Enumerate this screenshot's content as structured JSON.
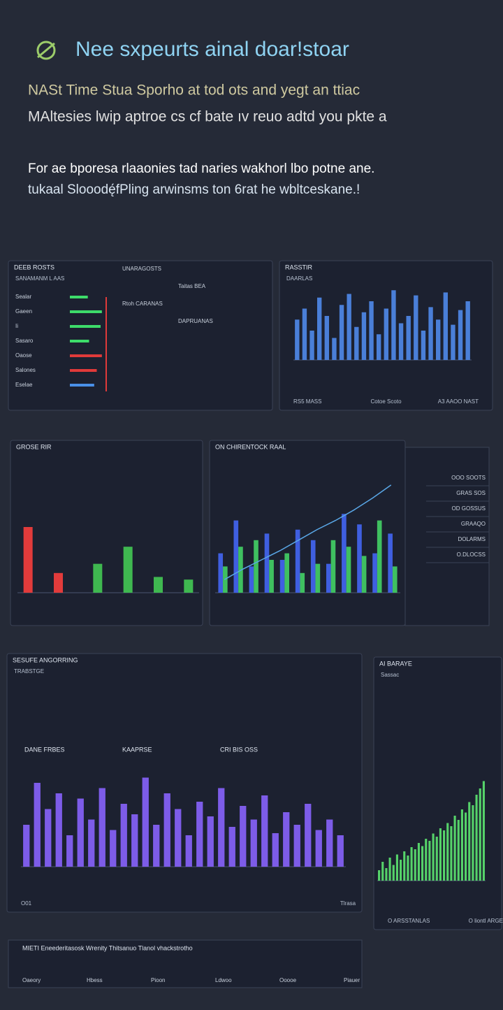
{
  "header": {
    "title": "Nee sxpeurts ainal doar!stoar",
    "subtitle": [
      "NASt Time Stua Sporho at tod ots and yegt an ttiac",
      "MAltesies lwip aptroe cs cf bate ıv reuo adtd you pkte a"
    ],
    "intro": [
      "For ae bporesa rlaaonies tad naries wakhorl lbo potne ane.",
      "tukaal Slooodę́fPling arwinsms ton 6rat he wbltceskane.!"
    ]
  },
  "chart_data": [
    {
      "type": "hbar",
      "title": "DEEB ROSTS",
      "subtitle": "SANAMANM L AAS",
      "xlim": [
        0,
        60
      ],
      "categories": [
        "Sealar",
        "Gaeen",
        "Ii",
        "Sasaro",
        "Oaose",
        "Salones",
        "Eselae"
      ],
      "values": [
        28,
        50,
        48,
        30,
        50,
        42,
        38
      ],
      "colors": [
        "#3ddc6a",
        "#3ddc6a",
        "#3ddc6a",
        "#3ddc6a",
        "#e03a3a",
        "#e03a3a",
        "#4a90e8"
      ],
      "notes": [
        "UNARAGOSTS",
        "Taitas BEA",
        "Rtoh CARANAS",
        "DAPRUANAS"
      ]
    },
    {
      "type": "bar",
      "title": "RASSTIR",
      "subtitle": "DAARLAS",
      "ylim": [
        0,
        100
      ],
      "series": [
        {
          "name": "Blue",
          "color": "#4a7fd8",
          "values": [
            55,
            70,
            40,
            85,
            60,
            30,
            75,
            90,
            45,
            65,
            80,
            35,
            70,
            95,
            50,
            60,
            88,
            40,
            72,
            55,
            92,
            48,
            68,
            80
          ]
        }
      ],
      "footer": [
        "RS5 MASS",
        "Cotoe Scoto",
        "A3 AAOO NAST"
      ]
    },
    {
      "type": "bar",
      "title": "GROSE RIR",
      "ylim": [
        0,
        100
      ],
      "series": [
        {
          "name": "Red",
          "color": "#e23b3b",
          "values": [
            50,
            15,
            null,
            null,
            null,
            null
          ]
        },
        {
          "name": "Green",
          "color": "#3fb850",
          "values": [
            null,
            null,
            22,
            35,
            12,
            10
          ]
        }
      ]
    },
    {
      "type": "bar",
      "title": "ON CHIRENTOCK RAAL",
      "ylim": [
        0,
        100
      ],
      "series": [
        {
          "name": "Blue",
          "color": "#3f5fe0",
          "values": [
            30,
            55,
            20,
            45,
            25,
            48,
            40,
            22,
            60,
            52,
            30,
            45
          ]
        },
        {
          "name": "Green",
          "color": "#3fc060",
          "values": [
            20,
            35,
            40,
            25,
            30,
            15,
            22,
            40,
            35,
            28,
            55,
            20
          ]
        },
        {
          "name": "Trend",
          "type": "line",
          "color": "#5aa8e8",
          "values": [
            10,
            18,
            25,
            32,
            40,
            48,
            55,
            63,
            72,
            82
          ]
        }
      ]
    },
    {
      "type": "bar",
      "title": "SESUFE ANGORRING",
      "subtitle": "TRABSTGE",
      "ylim": [
        0,
        100
      ],
      "headers": [
        "DANE FRBES",
        "KAAPRSE",
        "CRI BIS OSS"
      ],
      "series": [
        {
          "name": "Purple",
          "color": "#7d5ce8",
          "values": [
            40,
            80,
            55,
            70,
            30,
            65,
            45,
            75,
            35,
            60,
            50,
            85,
            40,
            70,
            55,
            30,
            62,
            48,
            75,
            38,
            58,
            45,
            68,
            32,
            52,
            40,
            60,
            35,
            45,
            30
          ]
        }
      ],
      "footer": [
        "O01",
        "Tlrasa"
      ]
    },
    {
      "type": "bar",
      "title": "AI BARAYE",
      "subtitle": "Sassac",
      "ylim": [
        0,
        100
      ],
      "series": [
        {
          "name": "Green",
          "color": "#56d36a",
          "values": [
            10,
            18,
            12,
            22,
            15,
            25,
            20,
            28,
            24,
            32,
            30,
            36,
            33,
            40,
            38,
            45,
            42,
            50,
            48,
            55,
            52,
            62,
            58,
            68,
            65,
            75,
            72,
            82,
            88,
            95
          ]
        }
      ],
      "footer": [
        "O ARSSTANLAS",
        "O liontl ARGES"
      ]
    }
  ],
  "side_list": [
    "OOO SOOTS",
    "GRAS SOS",
    "OD GOSSUS",
    "GRAAQO",
    "DOLARMS",
    "O.DLOCSS"
  ],
  "table": {
    "title": "MIETI Eneederitasosk Wrenity Thitsanuo Tlanol vhackstrotho",
    "columns": [
      "Oaeory",
      "Hbess",
      "Pioon",
      "Ldwoo",
      "Ooooe",
      "Piauer"
    ]
  }
}
